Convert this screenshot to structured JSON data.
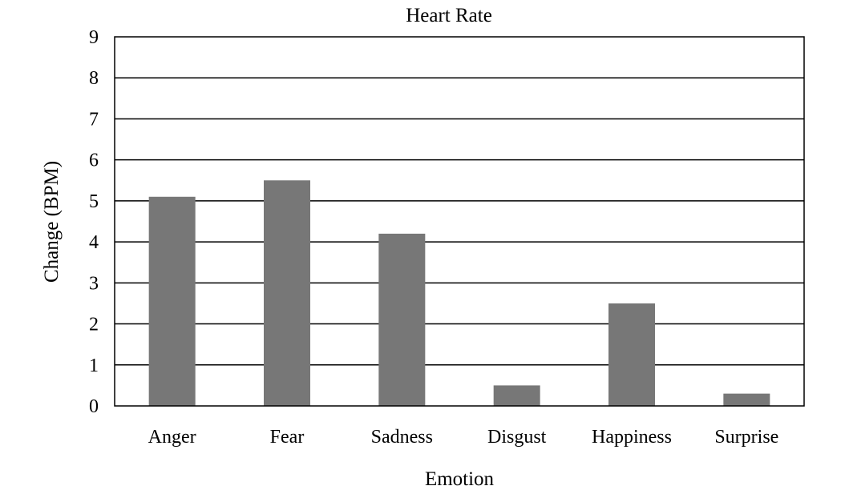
{
  "chart_data": {
    "type": "bar",
    "title": "Heart Rate",
    "xlabel": "Emotion",
    "ylabel": "Change (BPM)",
    "categories": [
      "Anger",
      "Fear",
      "Sadness",
      "Disgust",
      "Happiness",
      "Surprise"
    ],
    "values": [
      5.1,
      5.5,
      4.2,
      0.5,
      2.5,
      0.3
    ],
    "ylim": [
      0,
      9
    ],
    "yticks": [
      "0",
      "1",
      "2",
      "3",
      "4",
      "5",
      "6",
      "7",
      "8",
      "9"
    ],
    "grid": true,
    "legend": "none",
    "bar_color": "#777777",
    "grid_color": "#000000"
  }
}
